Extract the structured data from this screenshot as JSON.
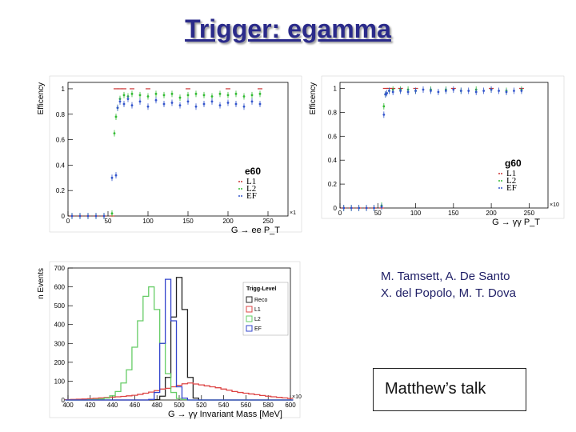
{
  "slide": {
    "title": "Trigger: egamma",
    "authors_line1": "M. Tamsett, A. De Santo",
    "authors_line2": "X. del Popolo, M. T. Dova",
    "talk": "Matthew’s talk"
  },
  "chart_data": [
    {
      "type": "scatter",
      "ylabel": "Efficency",
      "xlabel": "G → ee   P_T",
      "x_exponent": "×1",
      "xlim": [
        0,
        275
      ],
      "ylim": [
        0,
        1.05
      ],
      "xticks": [
        "0",
        "50",
        "100",
        "150",
        "200",
        "250"
      ],
      "yticks": [
        "0",
        "0.2",
        "0.4",
        "0.6",
        "0.8",
        "1"
      ],
      "legend_title": "e60",
      "legend_position": "bottom-right",
      "series": [
        {
          "name": "L1",
          "color": "#cc3333",
          "x": [
            5,
            15,
            25,
            35,
            45,
            55,
            60,
            65,
            70,
            80,
            100,
            150,
            200,
            240
          ],
          "y": [
            0,
            0,
            0,
            0,
            0,
            0,
            1.0,
            1.0,
            1.0,
            1.0,
            1.0,
            1.0,
            1.0,
            1.0
          ]
        },
        {
          "name": "L2",
          "color": "#33bb33",
          "x": [
            5,
            15,
            25,
            35,
            45,
            55,
            58,
            60,
            62,
            65,
            70,
            75,
            80,
            90,
            100,
            110,
            120,
            130,
            140,
            150,
            160,
            170,
            180,
            190,
            200,
            210,
            220,
            230,
            240
          ],
          "y": [
            0,
            0,
            0,
            0,
            0,
            0.02,
            0.65,
            0.78,
            0.85,
            0.92,
            0.95,
            0.94,
            0.96,
            0.95,
            0.94,
            0.96,
            0.95,
            0.96,
            0.93,
            0.95,
            0.96,
            0.95,
            0.94,
            0.96,
            0.95,
            0.96,
            0.94,
            0.95,
            0.96
          ]
        },
        {
          "name": "EF",
          "color": "#3355cc",
          "x": [
            5,
            15,
            25,
            35,
            45,
            55,
            60,
            62,
            65,
            70,
            75,
            80,
            90,
            100,
            110,
            120,
            130,
            140,
            150,
            160,
            170,
            180,
            190,
            200,
            210,
            220,
            230,
            240
          ],
          "y": [
            0,
            0,
            0,
            0,
            0,
            0.3,
            0.32,
            0.85,
            0.9,
            0.88,
            0.92,
            0.87,
            0.9,
            0.86,
            0.91,
            0.88,
            0.89,
            0.87,
            0.9,
            0.86,
            0.88,
            0.9,
            0.87,
            0.89,
            0.88,
            0.86,
            0.9,
            0.88
          ]
        }
      ]
    },
    {
      "type": "scatter",
      "ylabel": "Efficency",
      "xlabel": "G → γγ   P_T",
      "x_exponent": "×10",
      "xlim": [
        0,
        275
      ],
      "ylim": [
        0,
        1.05
      ],
      "xticks": [
        "0",
        "50",
        "100",
        "150",
        "200",
        "250"
      ],
      "yticks": [
        "0",
        "0.2",
        "0.4",
        "0.6",
        "0.8",
        "1"
      ],
      "legend_title": "g60",
      "legend_position": "bottom-right",
      "series": [
        {
          "name": "L1",
          "color": "#cc3333",
          "x": [
            5,
            15,
            25,
            35,
            45,
            55,
            60,
            65,
            70,
            80,
            100,
            150,
            200,
            240
          ],
          "y": [
            0,
            0,
            0,
            0,
            0,
            0,
            1.0,
            1.0,
            1.0,
            1.0,
            1.0,
            1.0,
            1.0,
            1.0
          ]
        },
        {
          "name": "L2",
          "color": "#33bb33",
          "x": [
            5,
            15,
            25,
            35,
            45,
            55,
            58,
            60,
            65,
            70,
            80,
            90,
            100,
            120,
            140,
            160,
            180,
            200,
            220,
            240
          ],
          "y": [
            0,
            0,
            0,
            0,
            0,
            0.02,
            0.85,
            0.95,
            0.98,
            0.99,
            0.99,
            0.99,
            0.98,
            0.99,
            0.99,
            0.98,
            0.99,
            0.99,
            0.98,
            0.99
          ]
        },
        {
          "name": "EF",
          "color": "#3355cc",
          "x": [
            5,
            15,
            25,
            35,
            45,
            55,
            58,
            60,
            62,
            65,
            70,
            80,
            90,
            100,
            110,
            120,
            130,
            140,
            150,
            160,
            170,
            180,
            190,
            200,
            210,
            220,
            230,
            240
          ],
          "y": [
            0,
            0,
            0,
            0,
            0,
            0.01,
            0.78,
            0.95,
            0.96,
            0.98,
            0.97,
            0.98,
            0.97,
            0.98,
            0.99,
            0.98,
            0.97,
            0.98,
            0.99,
            0.98,
            0.98,
            0.97,
            0.98,
            0.99,
            0.98,
            0.97,
            0.98,
            0.98
          ]
        }
      ]
    },
    {
      "type": "line",
      "ylabel": "n Events",
      "xlabel": "G → γγ Invariant Mass [MeV]",
      "x_exponent": "×10",
      "xlim": [
        400,
        600
      ],
      "ylim": [
        0,
        700
      ],
      "xticks": [
        "400",
        "420",
        "440",
        "460",
        "480",
        "500",
        "520",
        "540",
        "560",
        "580",
        "600"
      ],
      "yticks": [
        "0",
        "100",
        "200",
        "300",
        "400",
        "500",
        "600",
        "700"
      ],
      "legend_title": "Trigg-Level",
      "legend_position": "top-right",
      "x": [
        400,
        405,
        410,
        415,
        420,
        425,
        430,
        435,
        440,
        445,
        450,
        455,
        460,
        465,
        470,
        475,
        480,
        485,
        490,
        495,
        500,
        505,
        510,
        515,
        520,
        525,
        530,
        535,
        540,
        545,
        550,
        555,
        560,
        565,
        570,
        575,
        580,
        585,
        590,
        595,
        600
      ],
      "series": [
        {
          "name": "Reco",
          "color": "#222222",
          "values": [
            0,
            0,
            0,
            0,
            0,
            0,
            0,
            0,
            0,
            0,
            0,
            0,
            0,
            0,
            0,
            0,
            2,
            20,
            120,
            440,
            650,
            480,
            120,
            10,
            0,
            0,
            0,
            0,
            0,
            0,
            0,
            0,
            0,
            0,
            0,
            0,
            0,
            0,
            0,
            0,
            0
          ]
        },
        {
          "name": "L1",
          "color": "#dd4444",
          "values": [
            2,
            3,
            4,
            5,
            7,
            9,
            11,
            13,
            15,
            17,
            19,
            22,
            25,
            30,
            36,
            42,
            50,
            58,
            62,
            70,
            78,
            86,
            90,
            85,
            80,
            75,
            70,
            65,
            58,
            52,
            45,
            40,
            36,
            32,
            28,
            24,
            20,
            17,
            14,
            11,
            8
          ]
        },
        {
          "name": "L2",
          "color": "#66cc66",
          "values": [
            0,
            0,
            0,
            0,
            2,
            3,
            5,
            10,
            22,
            45,
            90,
            160,
            280,
            420,
            550,
            600,
            480,
            300,
            140,
            40,
            8,
            2,
            0,
            0,
            0,
            0,
            0,
            0,
            0,
            0,
            0,
            0,
            0,
            0,
            0,
            0,
            0,
            0,
            0,
            0,
            0
          ]
        },
        {
          "name": "EF",
          "color": "#3344cc",
          "values": [
            0,
            0,
            0,
            0,
            0,
            0,
            0,
            0,
            0,
            0,
            0,
            0,
            0,
            0,
            0,
            3,
            40,
            300,
            640,
            420,
            70,
            10,
            0,
            0,
            0,
            0,
            0,
            0,
            0,
            0,
            0,
            0,
            0,
            0,
            0,
            0,
            0,
            0,
            0,
            0,
            0
          ]
        }
      ]
    }
  ]
}
